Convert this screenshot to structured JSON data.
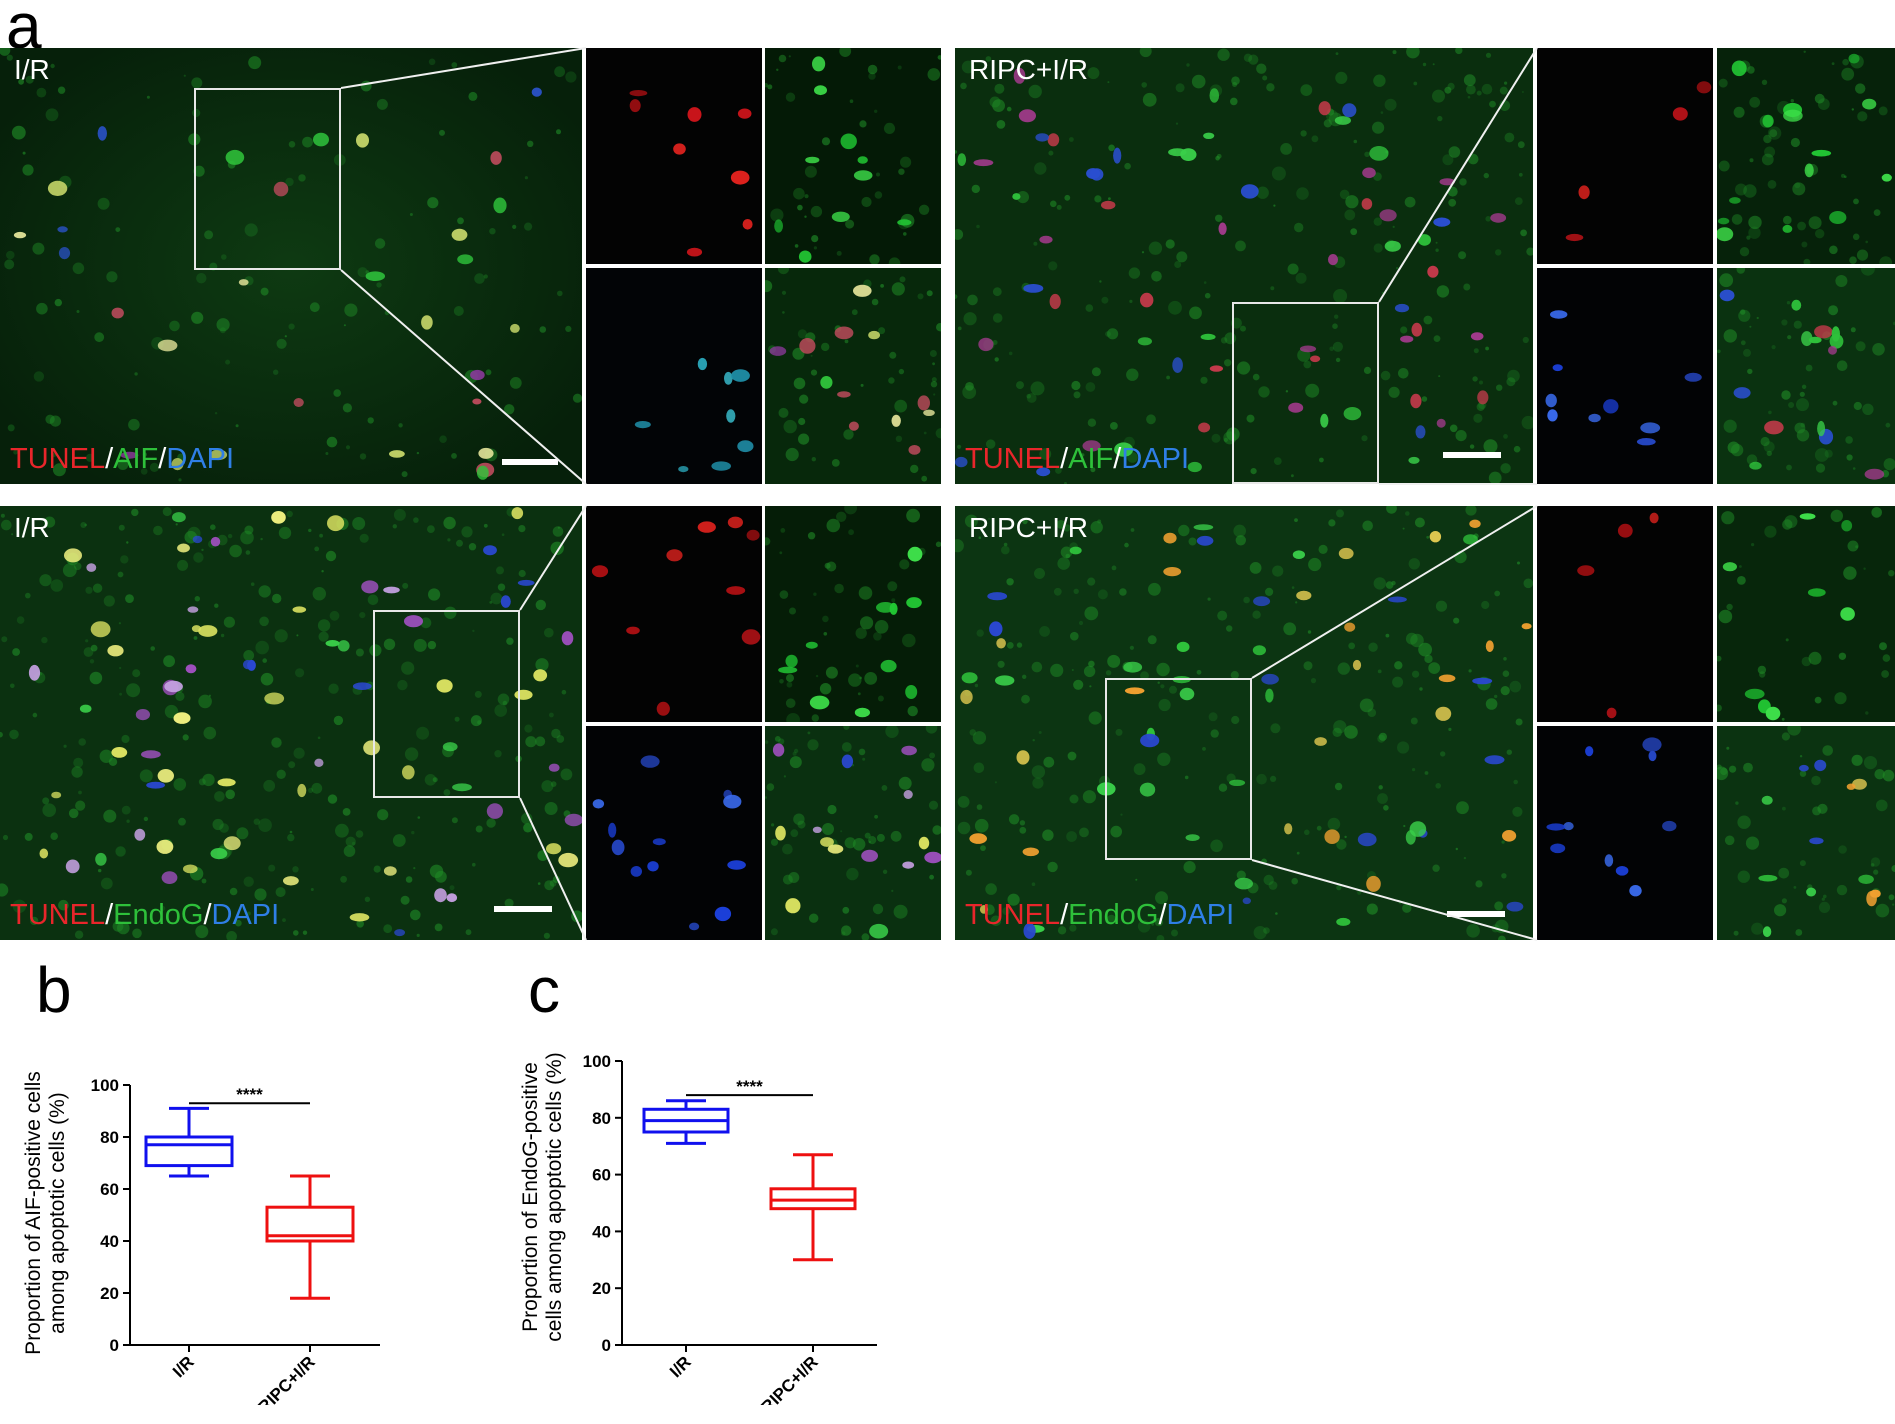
{
  "figure": {
    "panel_a": {
      "letter": "a",
      "rows": [
        {
          "left": {
            "label": "I/R",
            "stain": [
              "TUNEL",
              "/",
              "AIF",
              "/",
              "DAPI"
            ]
          },
          "right": {
            "label": "RIPC+I/R",
            "stain": [
              "TUNEL",
              "/",
              "AIF",
              "/",
              "DAPI"
            ]
          }
        },
        {
          "left": {
            "label": "I/R",
            "stain": [
              "TUNEL",
              "/",
              "EndoG",
              "/",
              "DAPI"
            ]
          },
          "right": {
            "label": "RIPC+I/R",
            "stain": [
              "TUNEL",
              "/",
              "EndoG",
              "/",
              "DAPI"
            ]
          }
        }
      ]
    },
    "panel_b": {
      "letter": "b"
    },
    "panel_c": {
      "letter": "c"
    }
  },
  "chart_data": [
    {
      "type": "box",
      "panel": "b",
      "title": "",
      "categories": [
        "I/R",
        "RIPC+I/R"
      ],
      "ylabel": [
        "Proportion of AIF-positive cells",
        "among apoptotic cells (%)"
      ],
      "ylim": [
        0,
        100
      ],
      "yticks": [
        0,
        20,
        40,
        60,
        80,
        100
      ],
      "boxes": [
        {
          "category": "I/R",
          "min": 65,
          "q1": 69,
          "median": 77,
          "q3": 80,
          "max": 91,
          "color": "#1010ee"
        },
        {
          "category": "RIPC+I/R",
          "min": 18,
          "q1": 40,
          "median": 42,
          "q3": 53,
          "max": 65,
          "color": "#ee1010"
        }
      ],
      "significance": {
        "label": "****",
        "from": "I/R",
        "to": "RIPC+I/R",
        "y": 93
      }
    },
    {
      "type": "box",
      "panel": "c",
      "title": "",
      "categories": [
        "I/R",
        "RIPC+I/R"
      ],
      "ylabel": [
        "Proportion of EndoG-positive",
        "cells among apoptotic cells (%)"
      ],
      "ylim": [
        0,
        100
      ],
      "yticks": [
        0,
        20,
        40,
        60,
        80,
        100
      ],
      "boxes": [
        {
          "category": "I/R",
          "min": 71,
          "q1": 75,
          "median": 79,
          "q3": 83,
          "max": 86,
          "color": "#1010ee"
        },
        {
          "category": "RIPC+I/R",
          "min": 30,
          "q1": 48,
          "median": 51,
          "q3": 55,
          "max": 67,
          "color": "#ee1010"
        }
      ],
      "significance": {
        "label": "****",
        "from": "I/R",
        "to": "RIPC+I/R",
        "y": 88
      }
    }
  ]
}
